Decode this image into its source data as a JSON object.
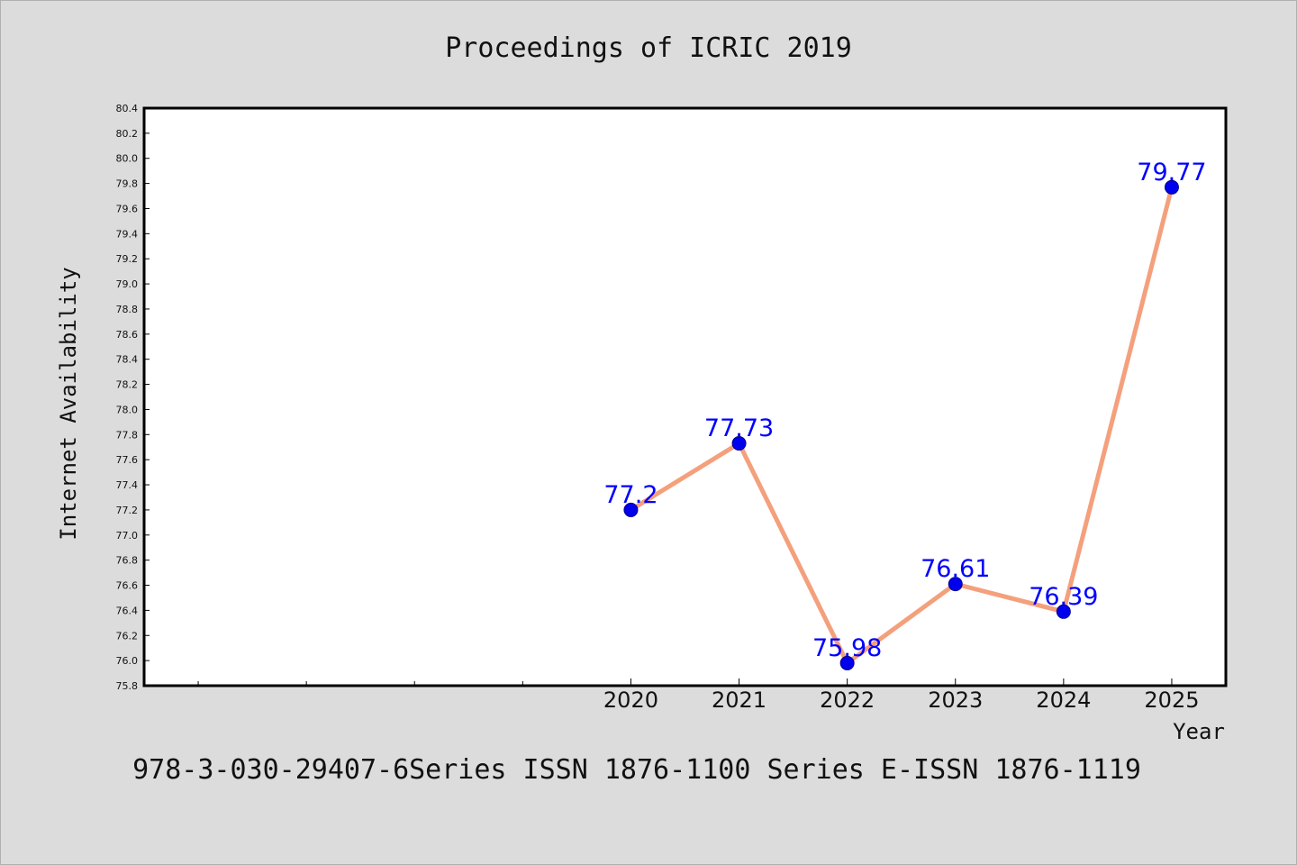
{
  "colors": {
    "background": "#dcdcdc",
    "plot_background": "#ffffff",
    "line": "#f4a07c",
    "marker": "#0000ee",
    "label": "#0000ff"
  },
  "chart_data": {
    "type": "line",
    "title": "Proceedings of ICRIC 2019",
    "footer": "978-3-030-29407-6Series ISSN 1876-1100 Series E-ISSN 1876-1119",
    "xlabel": "Year",
    "ylabel": "Internet Availability",
    "x": [
      2020,
      2021,
      2022,
      2023,
      2024,
      2025
    ],
    "xtick_labels": [
      "2020",
      "2021",
      "2022",
      "2023",
      "2024",
      "2025"
    ],
    "xlim": [
      2015.5,
      2025.5
    ],
    "minor_xticks": [
      2016,
      2017,
      2018,
      2019
    ],
    "ylim": [
      75.8,
      80.4
    ],
    "ytick_step": 0.2,
    "grid": false,
    "series": [
      {
        "values": [
          77.2,
          77.73,
          75.98,
          76.61,
          76.39,
          79.77
        ],
        "data_labels": [
          "77.2",
          "77.73",
          "75.98",
          "76.61",
          "76.39",
          "79.77"
        ]
      }
    ]
  }
}
